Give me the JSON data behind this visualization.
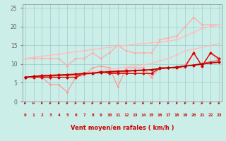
{
  "title": "",
  "xlabel": "Vent moyen/en rafales ( km/h )",
  "ylabel": "",
  "bg_color": "#cceee8",
  "grid_color": "#99cccc",
  "x": [
    0,
    1,
    2,
    3,
    4,
    5,
    6,
    7,
    8,
    9,
    10,
    11,
    12,
    13,
    14,
    15,
    16,
    17,
    18,
    19,
    20,
    21,
    22,
    23
  ],
  "lines": [
    {
      "color": "#ffaaaa",
      "linewidth": 0.9,
      "markersize": 2.0,
      "y": [
        11.5,
        11.5,
        11.5,
        11.5,
        11.5,
        9.5,
        11.5,
        11.5,
        13.0,
        11.5,
        13.0,
        15.0,
        13.5,
        13.0,
        13.0,
        13.0,
        16.5,
        17.0,
        17.5,
        20.0,
        22.5,
        20.5,
        20.5,
        20.5
      ]
    },
    {
      "color": "#ffbbbb",
      "linewidth": 0.9,
      "markersize": 2.0,
      "y": [
        11.5,
        11.8,
        12.1,
        12.4,
        12.7,
        13.0,
        13.3,
        13.6,
        13.9,
        14.2,
        14.5,
        14.8,
        15.0,
        15.3,
        15.5,
        15.7,
        15.9,
        16.2,
        16.5,
        17.5,
        18.5,
        19.5,
        20.0,
        20.5
      ]
    },
    {
      "color": "#ff9999",
      "linewidth": 0.9,
      "markersize": 2.0,
      "y": [
        6.5,
        6.5,
        6.5,
        4.5,
        4.5,
        2.5,
        6.5,
        7.0,
        9.0,
        9.5,
        9.0,
        4.0,
        9.0,
        9.0,
        9.0,
        6.5,
        9.0,
        9.0,
        9.0,
        9.0,
        13.0,
        9.5,
        13.0,
        11.0
      ]
    },
    {
      "color": "#ffbbbb",
      "linewidth": 0.9,
      "markersize": 2.0,
      "y": [
        6.5,
        6.8,
        7.1,
        7.1,
        7.1,
        7.1,
        7.4,
        7.7,
        8.0,
        8.3,
        8.6,
        8.9,
        9.2,
        9.5,
        9.8,
        10.1,
        10.9,
        11.5,
        12.5,
        13.5,
        14.0,
        14.5,
        15.0,
        15.5
      ]
    },
    {
      "color": "#dd0000",
      "linewidth": 1.0,
      "markersize": 2.5,
      "y": [
        6.5,
        6.5,
        6.5,
        6.5,
        6.5,
        6.5,
        6.5,
        7.5,
        7.5,
        8.0,
        7.5,
        7.5,
        7.5,
        7.5,
        7.5,
        7.5,
        9.0,
        9.0,
        9.0,
        9.5,
        13.0,
        9.5,
        13.0,
        11.5
      ]
    },
    {
      "color": "#ee4444",
      "linewidth": 1.0,
      "markersize": 2.0,
      "y": [
        6.5,
        6.6,
        6.7,
        6.8,
        6.9,
        7.0,
        7.1,
        7.3,
        7.5,
        7.7,
        7.8,
        7.9,
        8.0,
        8.2,
        8.3,
        8.5,
        8.8,
        9.0,
        9.2,
        9.5,
        9.8,
        10.2,
        10.6,
        11.0
      ]
    },
    {
      "color": "#bb0000",
      "linewidth": 1.2,
      "markersize": 2.5,
      "y": [
        6.5,
        6.7,
        6.9,
        7.0,
        7.1,
        7.2,
        7.3,
        7.5,
        7.6,
        7.8,
        8.0,
        8.1,
        8.2,
        8.3,
        8.4,
        8.5,
        8.8,
        9.0,
        9.2,
        9.5,
        9.7,
        10.0,
        10.3,
        10.5
      ]
    }
  ],
  "xlim": [
    -0.3,
    23.3
  ],
  "ylim": [
    0,
    26
  ],
  "yticks": [
    0,
    5,
    10,
    15,
    20,
    25
  ],
  "xticks": [
    0,
    1,
    2,
    3,
    4,
    5,
    6,
    7,
    8,
    9,
    10,
    11,
    12,
    13,
    14,
    15,
    16,
    17,
    18,
    19,
    20,
    21,
    22,
    23
  ],
  "xlabel_color": "#cc0000",
  "tick_color": "#cc0000",
  "ytick_color": "#666666"
}
